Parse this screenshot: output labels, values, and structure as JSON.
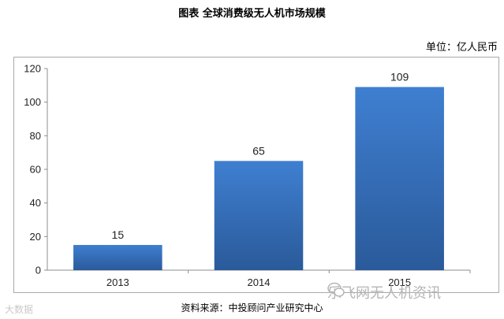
{
  "header": {
    "title": "图表   全球消费级无人机市场规模",
    "unit": "单位：亿人民币"
  },
  "footer": {
    "source": "资料来源：中投顾问产业研究中心",
    "watermark_left": "大数据",
    "watermark_right": "乐飞网无人机资讯",
    "watermark_icon": "wechat-icon"
  },
  "chart_data": {
    "type": "bar",
    "categories": [
      "2013",
      "2014",
      "2015"
    ],
    "values": [
      15,
      65,
      109
    ],
    "ylim": [
      0,
      120
    ],
    "yticks": [
      0,
      20,
      40,
      60,
      80,
      100,
      120
    ],
    "grid": false,
    "legend": "none",
    "bar_color_top": "#3f7fd1",
    "bar_color_bottom": "#2a5a9a"
  }
}
